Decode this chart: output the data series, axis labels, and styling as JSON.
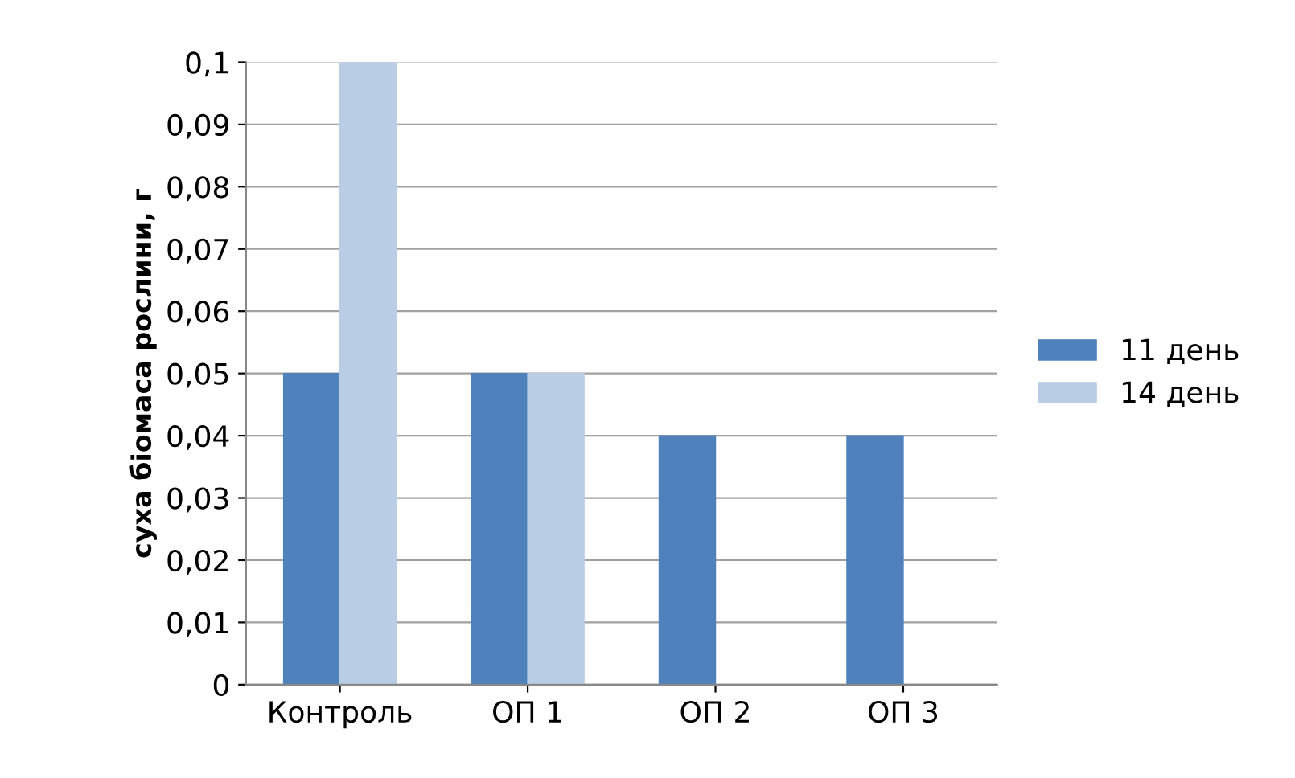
{
  "chart_data": {
    "type": "bar",
    "ylabel": "суха біомаса рослини, г",
    "categories": [
      "Контроль",
      "ОП 1",
      "ОП 2",
      "ОП 3"
    ],
    "series": [
      {
        "name": "11 день",
        "color": "#4f81bd",
        "values": [
          0.05,
          0.05,
          0.04,
          0.04
        ]
      },
      {
        "name": "14 день",
        "color": "#b9cde5",
        "values": [
          0.1,
          0.05,
          null,
          null
        ]
      }
    ],
    "ylim": [
      0,
      0.1
    ],
    "yticks": [
      0,
      {
        "value": 0.01,
        "label": "0,01"
      },
      {
        "value": 0.02,
        "label": "0,02"
      },
      {
        "value": 0.03,
        "label": "0,03"
      },
      {
        "value": 0.04,
        "label": "0,04"
      },
      {
        "value": 0.05,
        "label": "0,05"
      },
      {
        "value": 0.06,
        "label": "0,06"
      },
      {
        "value": 0.07,
        "label": "0,07"
      },
      {
        "value": 0.08,
        "label": "0,08"
      },
      {
        "value": 0.09,
        "label": "0,09"
      },
      {
        "value": 0.1,
        "label": "0,1"
      }
    ],
    "grid": "y",
    "legend": "right"
  }
}
